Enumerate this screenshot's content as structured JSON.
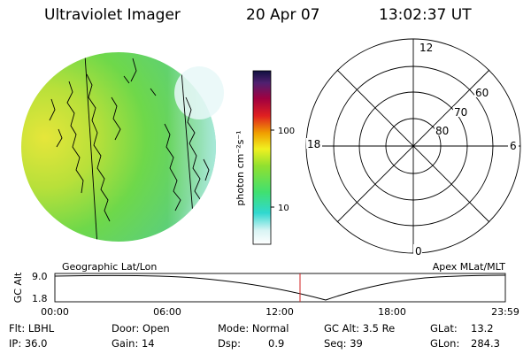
{
  "header": {
    "title": "Ultraviolet Imager",
    "date": "20 Apr 07",
    "time": "13:02:37 UT"
  },
  "colorbar": {
    "label": "photon cm⁻²s⁻¹",
    "ticks": [
      "100",
      "10"
    ]
  },
  "polar": {
    "mlt_labels": {
      "top": "12",
      "right": "6",
      "bottom": "0",
      "left": "18"
    },
    "lat_labels": [
      "60",
      "70",
      "80"
    ]
  },
  "altplot": {
    "left_label": "Geographic Lat/Lon",
    "right_label": "Apex MLat/MLT",
    "axis_label": "GC Alt",
    "yticks": [
      "9.0",
      "1.8"
    ],
    "xticks": [
      "00:00",
      "06:00",
      "12:00",
      "18:00",
      "23:59"
    ]
  },
  "footer": {
    "col1": [
      "Flt: LBHL",
      "IP: 36.0"
    ],
    "col2": [
      "Door: Open",
      "Gain: 14"
    ],
    "col3a": [
      "Mode: Normal",
      "Dsp:"
    ],
    "col3b": [
      "0.9"
    ],
    "col4": [
      "GC Alt: 3.5 Re",
      "Seq: 39"
    ],
    "col5": [
      "GLat:",
      "GLon:"
    ],
    "col6": [
      "13.2",
      "284.3"
    ]
  }
}
